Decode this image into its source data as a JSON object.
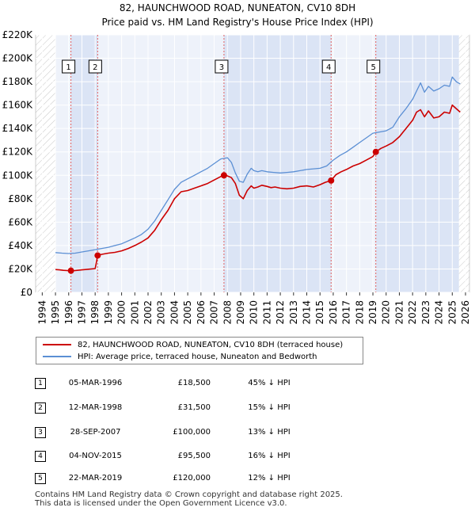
{
  "chart_data": {
    "type": "line",
    "title": "82, HAUNCHWOOD ROAD, NUNEATON, CV10 8DH",
    "subtitle": "Price paid vs. HM Land Registry's House Price Index (HPI)",
    "xlabel": "",
    "ylabel": "",
    "xlim": [
      1994,
      2026
    ],
    "ylim": [
      0,
      220000
    ],
    "x_ticks": [
      "1994",
      "1995",
      "1996",
      "1997",
      "1998",
      "1999",
      "2000",
      "2001",
      "2002",
      "2003",
      "2004",
      "2005",
      "2006",
      "2007",
      "2008",
      "2009",
      "2010",
      "2011",
      "2012",
      "2013",
      "2014",
      "2015",
      "2016",
      "2017",
      "2018",
      "2019",
      "2020",
      "2021",
      "2022",
      "2023",
      "2024",
      "2025",
      "2026"
    ],
    "y_ticks": [
      "£0",
      "£20K",
      "£40K",
      "£60K",
      "£80K",
      "£100K",
      "£120K",
      "£140K",
      "£160K",
      "£180K",
      "£200K",
      "£220K"
    ],
    "shaded_ranges": [
      [
        1996.17,
        1998.19
      ],
      [
        2007.74,
        2015.84
      ],
      [
        2019.22,
        2025.5
      ]
    ],
    "hatched_ranges": [
      [
        1993.5,
        1995.0
      ],
      [
        2025.5,
        2026.3
      ]
    ],
    "series": [
      {
        "name": "82, HAUNCHWOOD ROAD, NUNEATON, CV10 8DH (terraced house)",
        "color": "#cc0000",
        "x": [
          1995.0,
          1995.3,
          1995.6,
          1995.9,
          1996.17,
          1996.5,
          1997.0,
          1997.5,
          1998.0,
          1998.19,
          1998.5,
          1999.0,
          1999.5,
          2000.0,
          2000.5,
          2001.0,
          2001.5,
          2002.0,
          2002.5,
          2003.0,
          2003.5,
          2004.0,
          2004.5,
          2005.0,
          2005.5,
          2006.0,
          2006.5,
          2007.0,
          2007.5,
          2007.74,
          2008.0,
          2008.3,
          2008.6,
          2008.9,
          2009.2,
          2009.5,
          2009.8,
          2010.0,
          2010.3,
          2010.6,
          2011.0,
          2011.3,
          2011.6,
          2012.0,
          2012.5,
          2013.0,
          2013.5,
          2014.0,
          2014.5,
          2015.0,
          2015.4,
          2015.84,
          2016.2,
          2016.6,
          2017.0,
          2017.5,
          2018.0,
          2018.5,
          2019.0,
          2019.22,
          2019.6,
          2020.0,
          2020.5,
          2021.0,
          2021.5,
          2022.0,
          2022.3,
          2022.6,
          2022.9,
          2023.2,
          2023.6,
          2024.0,
          2024.4,
          2024.8,
          2025.0,
          2025.3,
          2025.6
        ],
        "y": [
          19500,
          19200,
          18800,
          18600,
          18500,
          18700,
          19200,
          19800,
          20300,
          31500,
          32500,
          33500,
          34200,
          35500,
          37500,
          40000,
          43000,
          46500,
          53000,
          62000,
          70000,
          80000,
          86000,
          87000,
          89000,
          91000,
          93000,
          96000,
          99000,
          100000,
          99500,
          98000,
          93000,
          83000,
          80000,
          87000,
          91000,
          89000,
          90000,
          91500,
          90500,
          89500,
          90000,
          89000,
          88500,
          89000,
          90500,
          91000,
          90000,
          92000,
          94000,
          95500,
          100500,
          103000,
          105000,
          108000,
          110000,
          113000,
          116000,
          120000,
          123000,
          125000,
          128000,
          133000,
          140000,
          147000,
          154000,
          156000,
          150000,
          155000,
          149000,
          150000,
          154000,
          153000,
          160000,
          157000,
          154000
        ],
        "values_note": "estimated from gridlines"
      },
      {
        "name": "HPI: Average price, terraced house, Nuneaton and Bedworth",
        "color": "#5b8fd4",
        "x": [
          1995.0,
          1995.5,
          1996.0,
          1996.5,
          1997.0,
          1997.5,
          1998.0,
          1998.5,
          1999.0,
          1999.5,
          2000.0,
          2000.5,
          2001.0,
          2001.5,
          2002.0,
          2002.5,
          2003.0,
          2003.5,
          2004.0,
          2004.5,
          2005.0,
          2005.5,
          2006.0,
          2006.5,
          2007.0,
          2007.5,
          2008.0,
          2008.3,
          2008.6,
          2008.9,
          2009.2,
          2009.5,
          2009.8,
          2010.0,
          2010.3,
          2010.6,
          2011.0,
          2011.5,
          2012.0,
          2012.5,
          2013.0,
          2013.5,
          2014.0,
          2014.5,
          2015.0,
          2015.5,
          2016.0,
          2016.5,
          2017.0,
          2017.5,
          2018.0,
          2018.5,
          2019.0,
          2019.5,
          2020.0,
          2020.5,
          2021.0,
          2021.5,
          2022.0,
          2022.3,
          2022.6,
          2022.9,
          2023.2,
          2023.6,
          2024.0,
          2024.4,
          2024.8,
          2025.0,
          2025.3,
          2025.6
        ],
        "y": [
          34000,
          33500,
          33200,
          33500,
          34500,
          35500,
          36500,
          37500,
          38500,
          40000,
          41500,
          44000,
          46500,
          49500,
          54000,
          61000,
          70000,
          79000,
          88000,
          94000,
          97000,
          100000,
          103000,
          106000,
          110000,
          114000,
          115000,
          111000,
          102000,
          95000,
          94000,
          101000,
          106000,
          104000,
          103000,
          104000,
          103000,
          102500,
          102000,
          102500,
          103000,
          104000,
          105000,
          105500,
          106000,
          108000,
          113000,
          117000,
          120000,
          124000,
          128000,
          132000,
          136000,
          137000,
          138000,
          141000,
          150000,
          157000,
          165000,
          172000,
          179000,
          171000,
          176000,
          172000,
          174000,
          177000,
          176000,
          184000,
          180000,
          178000
        ],
        "values_note": "estimated from gridlines"
      }
    ],
    "sales": [
      {
        "label": "1",
        "x": 1996.17,
        "y": 18500
      },
      {
        "label": "2",
        "x": 1998.19,
        "y": 31500
      },
      {
        "label": "3",
        "x": 2007.74,
        "y": 100000
      },
      {
        "label": "4",
        "x": 2015.84,
        "y": 95500
      },
      {
        "label": "5",
        "x": 2019.22,
        "y": 120000
      }
    ]
  },
  "legend": {
    "property_label": "82, HAUNCHWOOD ROAD, NUNEATON, CV10 8DH (terraced house)",
    "hpi_label": "HPI: Average price, terraced house, Nuneaton and Bedworth"
  },
  "transactions": [
    {
      "num": "1",
      "date": "05-MAR-1996",
      "price": "£18,500",
      "hpi": "45% ↓ HPI"
    },
    {
      "num": "2",
      "date": "12-MAR-1998",
      "price": "£31,500",
      "hpi": "15% ↓ HPI"
    },
    {
      "num": "3",
      "date": "28-SEP-2007",
      "price": "£100,000",
      "hpi": "13% ↓ HPI"
    },
    {
      "num": "4",
      "date": "04-NOV-2015",
      "price": "£95,500",
      "hpi": "16% ↓ HPI"
    },
    {
      "num": "5",
      "date": "22-MAR-2019",
      "price": "£120,000",
      "hpi": "12% ↓ HPI"
    }
  ],
  "footer": {
    "line1": "Contains HM Land Registry data © Crown copyright and database right 2025.",
    "line2": "This data is licensed under the Open Government Licence v3.0."
  }
}
